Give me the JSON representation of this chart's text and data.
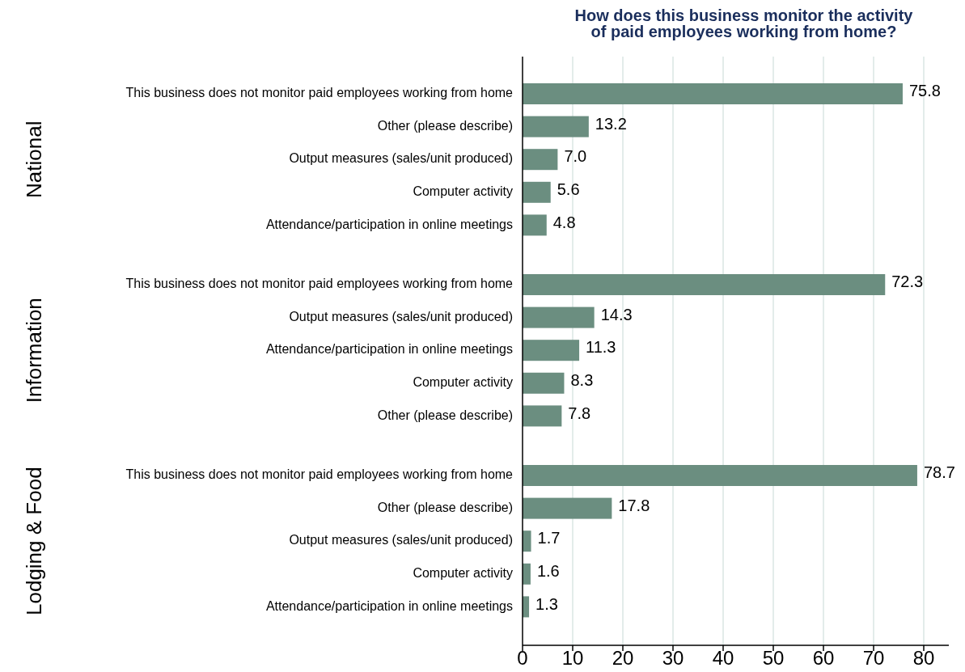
{
  "chart_data": [
    {
      "type": "bar",
      "orientation": "horizontal",
      "title": "How does this business monitor the activity of paid employees working from home?",
      "ylabel": "National",
      "categories": [
        "This business does not monitor paid employees working from home",
        "Other (please describe)",
        "Output measures (sales/unit produced)",
        "Computer activity",
        "Attendance/participation in online meetings"
      ],
      "values": [
        75.8,
        13.2,
        7.0,
        5.6,
        4.8
      ],
      "value_labels": [
        "75.8",
        "13.2",
        "7.0",
        "5.6",
        "4.8"
      ],
      "color": "#6b8e80",
      "xticks": [
        0,
        10,
        20,
        30,
        40,
        50,
        60,
        70,
        80
      ],
      "grid": "x",
      "tick_labels": "y"
    },
    {
      "type": "bar",
      "orientation": "horizontal",
      "ylabel": "Information",
      "categories": [
        "This business does not monitor paid employees working from home",
        "Output measures (sales/unit produced)",
        "Attendance/participation in online meetings",
        "Computer activity",
        "Other (please describe)"
      ],
      "values": [
        72.3,
        14.3,
        11.3,
        8.3,
        7.8
      ],
      "value_labels": [
        "72.3",
        "14.3",
        "11.3",
        "8.3",
        "7.8"
      ],
      "color": "#6b8e80",
      "xticks": [
        0,
        10,
        20,
        30,
        40,
        50,
        60,
        70,
        80
      ],
      "grid": "x",
      "tick_labels": "y"
    },
    {
      "type": "bar",
      "orientation": "horizontal",
      "ylabel": "Lodging & Food",
      "categories": [
        "This business does not monitor paid employees working from home",
        "Other (please describe)",
        "Output measures (sales/unit produced)",
        "Computer activity",
        "Attendance/participation in online meetings"
      ],
      "values": [
        78.7,
        17.8,
        1.7,
        1.6,
        1.3
      ],
      "value_labels": [
        "78.7",
        "17.8",
        "1.7",
        "1.6",
        "1.3"
      ],
      "color": "#6b8e80",
      "xlim": [
        0,
        85
      ],
      "xticks": [
        0,
        10,
        20,
        30,
        40,
        50,
        60,
        70,
        80
      ],
      "grid": "x"
    }
  ]
}
